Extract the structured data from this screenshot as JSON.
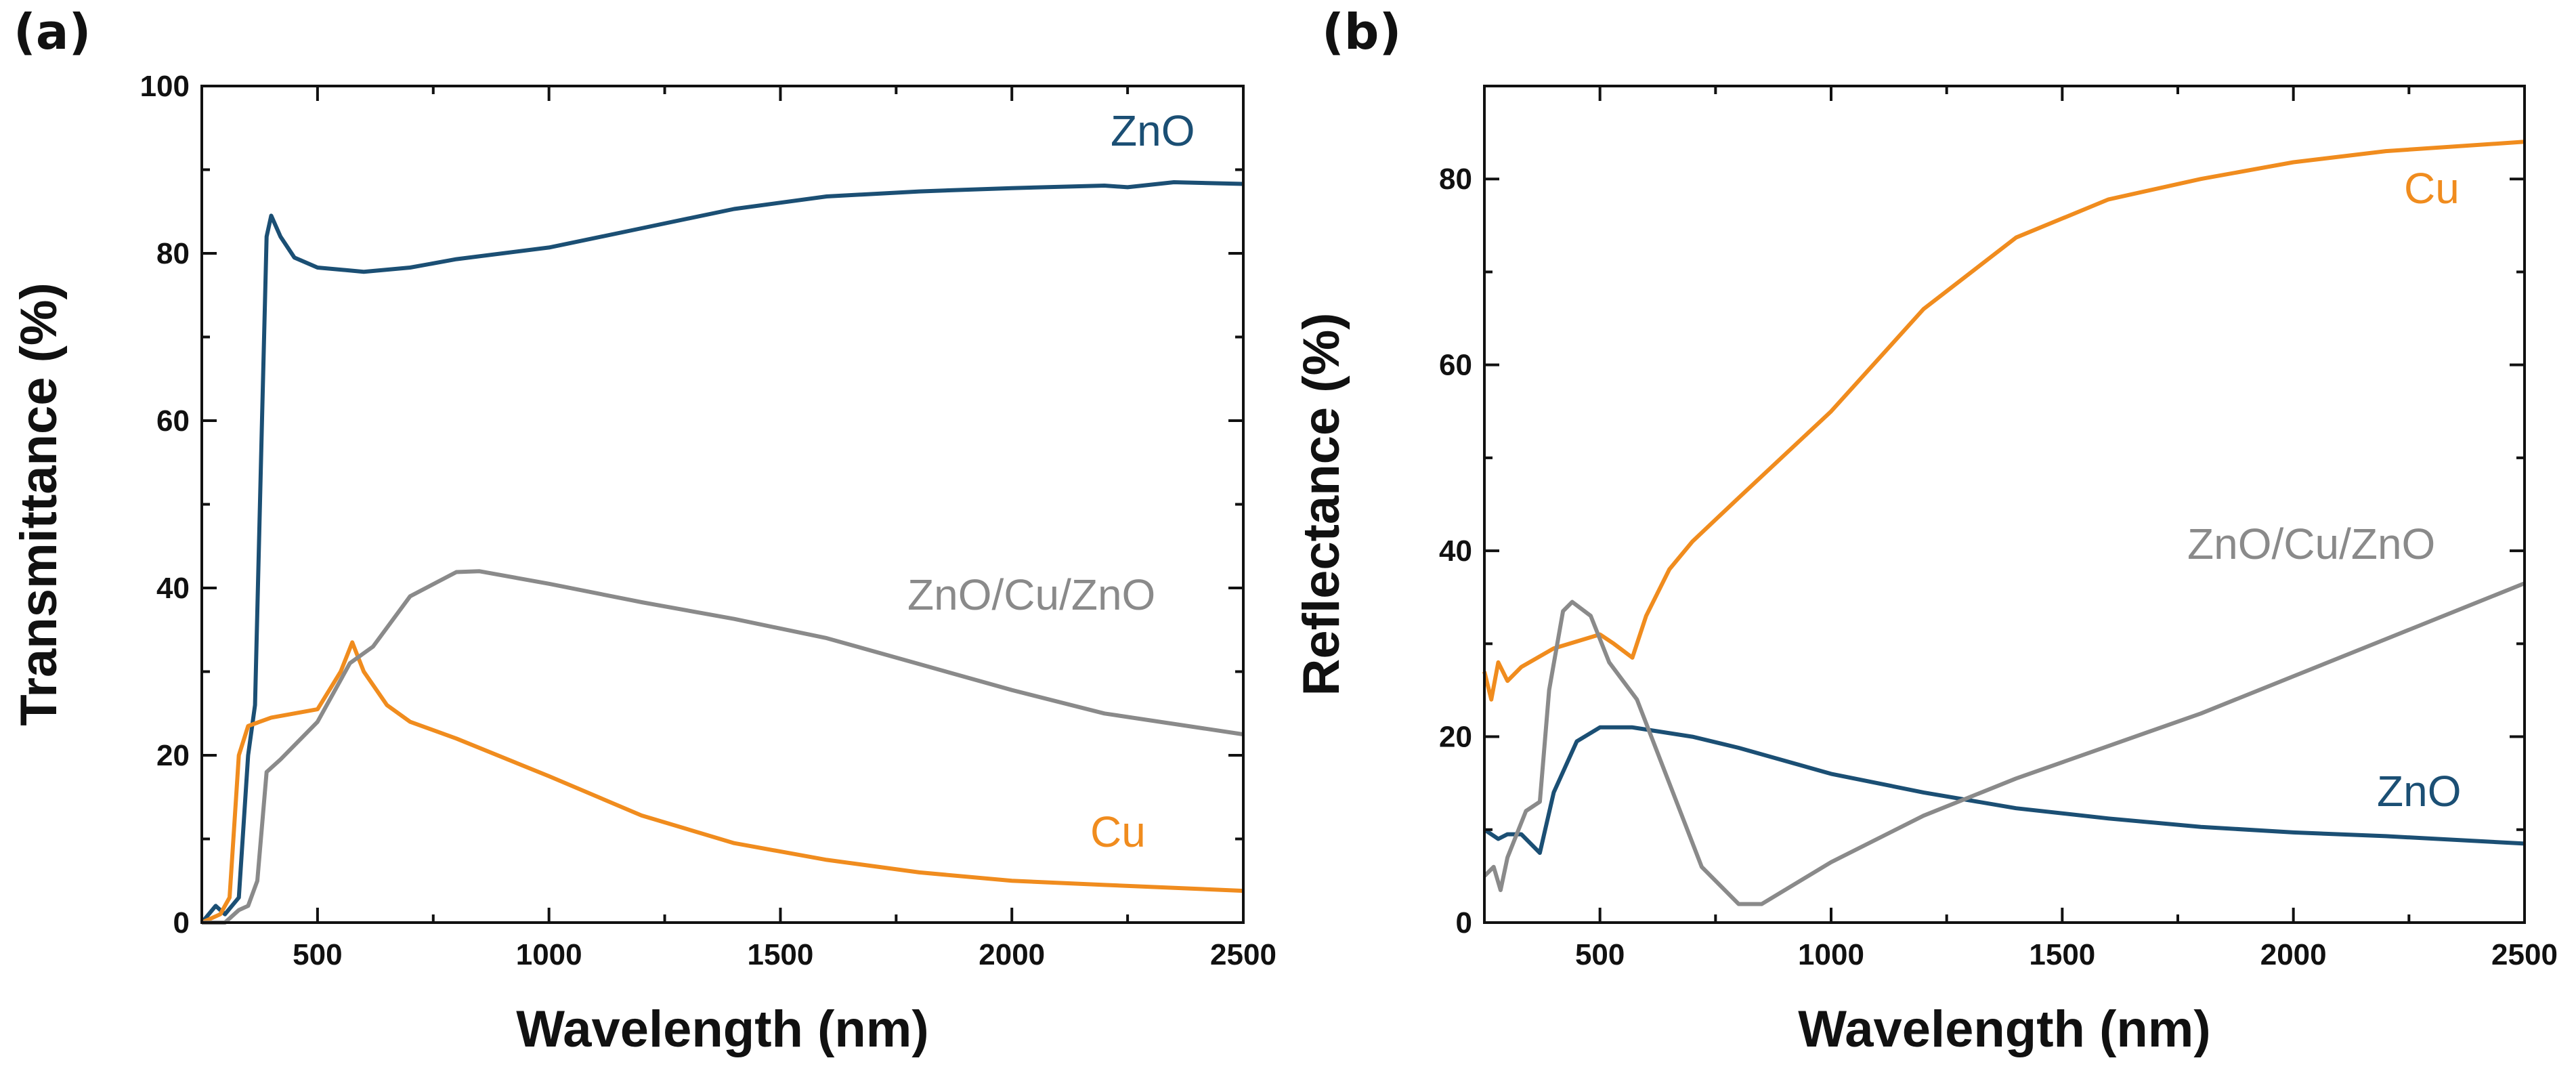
{
  "colors": {
    "ZnO": "#1b4f74",
    "Cu": "#f08c1e",
    "ZnO/Cu/ZnO": "#8a8a8a"
  },
  "chart_data": [
    {
      "type": "line",
      "panel_label": "(a)",
      "xlabel": "Wavelength (nm)",
      "ylabel": "Transmittance (%)",
      "xlim": [
        250,
        2500
      ],
      "ylim": [
        0,
        100
      ],
      "xticks": [
        500,
        1000,
        1500,
        2000,
        2500
      ],
      "yticks": [
        0,
        20,
        40,
        60,
        80,
        100
      ],
      "grid": false,
      "series": [
        {
          "name": "ZnO",
          "label": "ZnO",
          "x": [
            250,
            280,
            300,
            330,
            350,
            365,
            380,
            390,
            400,
            420,
            450,
            500,
            600,
            700,
            800,
            1000,
            1200,
            1400,
            1600,
            1800,
            2000,
            2200,
            2250,
            2350,
            2500
          ],
          "y": [
            0,
            2,
            1,
            3,
            20,
            26,
            60,
            82,
            84.5,
            82,
            79.5,
            78.3,
            77.8,
            78.3,
            79.3,
            80.7,
            83,
            85.3,
            86.8,
            87.4,
            87.8,
            88.1,
            87.9,
            88.5,
            88.3
          ]
        },
        {
          "name": "Cu",
          "label": "Cu",
          "x": [
            250,
            290,
            310,
            330,
            350,
            400,
            500,
            550,
            575,
            600,
            650,
            700,
            800,
            1000,
            1200,
            1400,
            1600,
            1800,
            2000,
            2200,
            2500
          ],
          "y": [
            0,
            1,
            3,
            20,
            23.5,
            24.5,
            25.5,
            30,
            33.5,
            30,
            26,
            24,
            22,
            17.5,
            12.8,
            9.5,
            7.5,
            6,
            5,
            4.5,
            3.8
          ]
        },
        {
          "name": "ZnO/Cu/ZnO",
          "label": "ZnO/Cu/ZnO",
          "x": [
            250,
            300,
            330,
            350,
            370,
            390,
            420,
            500,
            570,
            620,
            700,
            800,
            850,
            1000,
            1200,
            1400,
            1600,
            1800,
            2000,
            2200,
            2500
          ],
          "y": [
            0,
            0,
            1.5,
            2,
            5,
            18,
            19.5,
            24,
            31,
            33,
            39,
            41.9,
            42,
            40.5,
            38.3,
            36.3,
            34,
            30.9,
            27.8,
            25,
            22.5
          ]
        }
      ]
    },
    {
      "type": "line",
      "panel_label": "(b)",
      "xlabel": "Wavelength (nm)",
      "ylabel": "Reflectance (%)",
      "xlim": [
        250,
        2500
      ],
      "ylim": [
        0,
        90
      ],
      "xticks": [
        500,
        1000,
        1500,
        2000,
        2500
      ],
      "yticks": [
        0,
        20,
        40,
        60,
        80
      ],
      "grid": false,
      "series": [
        {
          "name": "Cu",
          "label": "Cu",
          "x": [
            250,
            265,
            280,
            300,
            330,
            400,
            500,
            530,
            570,
            600,
            650,
            700,
            800,
            1000,
            1200,
            1400,
            1600,
            1800,
            2000,
            2200,
            2500
          ],
          "y": [
            27,
            24,
            28,
            26,
            27.5,
            29.5,
            31,
            30,
            28.5,
            33,
            38,
            41,
            45.7,
            55,
            66,
            73.7,
            77.8,
            80,
            81.8,
            83,
            84
          ]
        },
        {
          "name": "ZnO",
          "label": "ZnO",
          "x": [
            250,
            280,
            300,
            330,
            370,
            400,
            450,
            500,
            570,
            700,
            800,
            1000,
            1200,
            1400,
            1600,
            1800,
            2000,
            2200,
            2500
          ],
          "y": [
            10,
            9,
            9.5,
            9.5,
            7.5,
            14,
            19.5,
            21,
            21,
            20,
            18.8,
            16,
            14,
            12.3,
            11.2,
            10.3,
            9.7,
            9.3,
            8.5
          ]
        },
        {
          "name": "ZnO/Cu/ZnO",
          "label": "ZnO/Cu/ZnO",
          "x": [
            250,
            270,
            285,
            300,
            340,
            370,
            390,
            420,
            440,
            480,
            520,
            580,
            650,
            720,
            800,
            850,
            1000,
            1200,
            1400,
            1600,
            1800,
            2000,
            2200,
            2500
          ],
          "y": [
            5,
            6,
            3.5,
            7,
            12,
            13,
            25,
            33.5,
            34.5,
            33,
            28,
            24,
            15,
            6,
            2,
            2,
            6.5,
            11.5,
            15.5,
            19,
            22.5,
            26.5,
            30.5,
            36.5
          ]
        }
      ]
    }
  ]
}
